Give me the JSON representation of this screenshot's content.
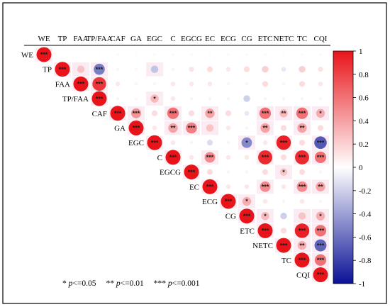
{
  "chart_data": {
    "type": "heatmap",
    "subtype": "correlation-circles-upper-triangle",
    "variables": [
      "WE",
      "TP",
      "FAA",
      "TP/FAA",
      "CAF",
      "GA",
      "EGC",
      "C",
      "EGCG",
      "EC",
      "ECG",
      "CG",
      "ETC",
      "NETC",
      "TC",
      "CQI"
    ],
    "cells": [
      {
        "row": "WE",
        "col": "WE",
        "r": 1.0,
        "sig": "***"
      },
      {
        "row": "WE",
        "col": "TP",
        "r": 0.02,
        "sig": ""
      },
      {
        "row": "WE",
        "col": "FAA",
        "r": 0.02,
        "sig": ""
      },
      {
        "row": "WE",
        "col": "TP/FAA",
        "r": 0.02,
        "sig": ""
      },
      {
        "row": "WE",
        "col": "CAF",
        "r": 0.03,
        "sig": ""
      },
      {
        "row": "WE",
        "col": "GA",
        "r": 0.03,
        "sig": ""
      },
      {
        "row": "WE",
        "col": "EGC",
        "r": 0.03,
        "sig": ""
      },
      {
        "row": "WE",
        "col": "C",
        "r": 0.03,
        "sig": ""
      },
      {
        "row": "WE",
        "col": "EGCG",
        "r": 0.03,
        "sig": ""
      },
      {
        "row": "WE",
        "col": "EC",
        "r": 0.03,
        "sig": ""
      },
      {
        "row": "WE",
        "col": "ECG",
        "r": 0.03,
        "sig": ""
      },
      {
        "row": "WE",
        "col": "CG",
        "r": 0.03,
        "sig": ""
      },
      {
        "row": "WE",
        "col": "ETC",
        "r": 0.03,
        "sig": ""
      },
      {
        "row": "WE",
        "col": "NETC",
        "r": 0.03,
        "sig": ""
      },
      {
        "row": "WE",
        "col": "TC",
        "r": 0.03,
        "sig": ""
      },
      {
        "row": "WE",
        "col": "CQI",
        "r": 0.03,
        "sig": ""
      },
      {
        "row": "TP",
        "col": "TP",
        "r": 1.0,
        "sig": "***"
      },
      {
        "row": "TP",
        "col": "FAA",
        "r": 0.25,
        "sig": ""
      },
      {
        "row": "TP",
        "col": "TP/FAA",
        "r": -0.55,
        "sig": "***"
      },
      {
        "row": "TP",
        "col": "CAF",
        "r": 0.05,
        "sig": ""
      },
      {
        "row": "TP",
        "col": "GA",
        "r": 0.04,
        "sig": ""
      },
      {
        "row": "TP",
        "col": "EGC",
        "r": -0.25,
        "sig": ""
      },
      {
        "row": "TP",
        "col": "C",
        "r": 0.05,
        "sig": ""
      },
      {
        "row": "TP",
        "col": "EGCG",
        "r": 0.12,
        "sig": ""
      },
      {
        "row": "TP",
        "col": "EC",
        "r": 0.15,
        "sig": ""
      },
      {
        "row": "TP",
        "col": "ECG",
        "r": 0.1,
        "sig": ""
      },
      {
        "row": "TP",
        "col": "CG",
        "r": 0.15,
        "sig": ""
      },
      {
        "row": "TP",
        "col": "ETC",
        "r": 0.2,
        "sig": ""
      },
      {
        "row": "TP",
        "col": "NETC",
        "r": -0.1,
        "sig": ""
      },
      {
        "row": "TP",
        "col": "TC",
        "r": 0.2,
        "sig": ""
      },
      {
        "row": "TP",
        "col": "CQI",
        "r": 0.12,
        "sig": ""
      },
      {
        "row": "FAA",
        "col": "FAA",
        "r": 1.0,
        "sig": "***"
      },
      {
        "row": "FAA",
        "col": "TP/FAA",
        "r": 0.85,
        "sig": "***"
      },
      {
        "row": "FAA",
        "col": "CAF",
        "r": 0.1,
        "sig": ""
      },
      {
        "row": "FAA",
        "col": "GA",
        "r": 0.05,
        "sig": ""
      },
      {
        "row": "FAA",
        "col": "EGC",
        "r": 0.05,
        "sig": ""
      },
      {
        "row": "FAA",
        "col": "C",
        "r": 0.1,
        "sig": ""
      },
      {
        "row": "FAA",
        "col": "EGCG",
        "r": 0.1,
        "sig": ""
      },
      {
        "row": "FAA",
        "col": "EC",
        "r": 0.1,
        "sig": ""
      },
      {
        "row": "FAA",
        "col": "ECG",
        "r": 0.05,
        "sig": ""
      },
      {
        "row": "FAA",
        "col": "CG",
        "r": 0.05,
        "sig": ""
      },
      {
        "row": "FAA",
        "col": "ETC",
        "r": 0.15,
        "sig": ""
      },
      {
        "row": "FAA",
        "col": "NETC",
        "r": 0.05,
        "sig": ""
      },
      {
        "row": "FAA",
        "col": "TC",
        "r": 0.15,
        "sig": ""
      },
      {
        "row": "FAA",
        "col": "CQI",
        "r": 0.1,
        "sig": ""
      },
      {
        "row": "TP/FAA",
        "col": "TP/FAA",
        "r": 1.0,
        "sig": "***"
      },
      {
        "row": "TP/FAA",
        "col": "CAF",
        "r": 0.05,
        "sig": ""
      },
      {
        "row": "TP/FAA",
        "col": "GA",
        "r": 0.04,
        "sig": ""
      },
      {
        "row": "TP/FAA",
        "col": "EGC",
        "r": 0.3,
        "sig": "*"
      },
      {
        "row": "TP/FAA",
        "col": "C",
        "r": 0.1,
        "sig": ""
      },
      {
        "row": "TP/FAA",
        "col": "EGCG",
        "r": 0.05,
        "sig": ""
      },
      {
        "row": "TP/FAA",
        "col": "EC",
        "r": 0.05,
        "sig": ""
      },
      {
        "row": "TP/FAA",
        "col": "ECG",
        "r": 0.05,
        "sig": ""
      },
      {
        "row": "TP/FAA",
        "col": "CG",
        "r": -0.2,
        "sig": ""
      },
      {
        "row": "TP/FAA",
        "col": "ETC",
        "r": 0.05,
        "sig": ""
      },
      {
        "row": "TP/FAA",
        "col": "NETC",
        "r": 0.05,
        "sig": ""
      },
      {
        "row": "TP/FAA",
        "col": "TC",
        "r": 0.05,
        "sig": ""
      },
      {
        "row": "TP/FAA",
        "col": "CQI",
        "r": 0.05,
        "sig": ""
      },
      {
        "row": "CAF",
        "col": "CAF",
        "r": 1.0,
        "sig": "***"
      },
      {
        "row": "CAF",
        "col": "GA",
        "r": 0.45,
        "sig": "***"
      },
      {
        "row": "CAF",
        "col": "EGC",
        "r": 0.15,
        "sig": ""
      },
      {
        "row": "CAF",
        "col": "C",
        "r": 0.6,
        "sig": "***"
      },
      {
        "row": "CAF",
        "col": "EGCG",
        "r": 0.15,
        "sig": ""
      },
      {
        "row": "CAF",
        "col": "EC",
        "r": 0.4,
        "sig": "**"
      },
      {
        "row": "CAF",
        "col": "ECG",
        "r": 0.15,
        "sig": ""
      },
      {
        "row": "CAF",
        "col": "CG",
        "r": -0.1,
        "sig": ""
      },
      {
        "row": "CAF",
        "col": "ETC",
        "r": 0.6,
        "sig": "***"
      },
      {
        "row": "CAF",
        "col": "NETC",
        "r": 0.3,
        "sig": "**"
      },
      {
        "row": "CAF",
        "col": "TC",
        "r": 0.6,
        "sig": "***"
      },
      {
        "row": "CAF",
        "col": "CQI",
        "r": 0.35,
        "sig": "*"
      },
      {
        "row": "GA",
        "col": "GA",
        "r": 1.0,
        "sig": "***"
      },
      {
        "row": "GA",
        "col": "EGC",
        "r": 0.1,
        "sig": ""
      },
      {
        "row": "GA",
        "col": "C",
        "r": 0.4,
        "sig": "**"
      },
      {
        "row": "GA",
        "col": "EGCG",
        "r": 0.55,
        "sig": "***"
      },
      {
        "row": "GA",
        "col": "EC",
        "r": 0.25,
        "sig": ""
      },
      {
        "row": "GA",
        "col": "ECG",
        "r": 0.1,
        "sig": ""
      },
      {
        "row": "GA",
        "col": "CG",
        "r": 0.05,
        "sig": ""
      },
      {
        "row": "GA",
        "col": "ETC",
        "r": 0.4,
        "sig": "**"
      },
      {
        "row": "GA",
        "col": "NETC",
        "r": 0.15,
        "sig": ""
      },
      {
        "row": "GA",
        "col": "TC",
        "r": 0.4,
        "sig": "**"
      },
      {
        "row": "GA",
        "col": "CQI",
        "r": 0.15,
        "sig": ""
      },
      {
        "row": "EGC",
        "col": "EGC",
        "r": 1.0,
        "sig": "***"
      },
      {
        "row": "EGC",
        "col": "C",
        "r": 0.1,
        "sig": ""
      },
      {
        "row": "EGC",
        "col": "EGCG",
        "r": 0.05,
        "sig": ""
      },
      {
        "row": "EGC",
        "col": "EC",
        "r": -0.15,
        "sig": ""
      },
      {
        "row": "EGC",
        "col": "ECG",
        "r": 0.05,
        "sig": ""
      },
      {
        "row": "EGC",
        "col": "CG",
        "r": -0.5,
        "sig": "*"
      },
      {
        "row": "EGC",
        "col": "ETC",
        "r": 0.1,
        "sig": ""
      },
      {
        "row": "EGC",
        "col": "NETC",
        "r": 0.95,
        "sig": "***"
      },
      {
        "row": "EGC",
        "col": "TC",
        "r": 0.15,
        "sig": ""
      },
      {
        "row": "EGC",
        "col": "CQI",
        "r": -0.7,
        "sig": "***"
      },
      {
        "row": "C",
        "col": "C",
        "r": 1.0,
        "sig": "***"
      },
      {
        "row": "C",
        "col": "EGCG",
        "r": 0.1,
        "sig": ""
      },
      {
        "row": "C",
        "col": "EC",
        "r": 0.5,
        "sig": "***"
      },
      {
        "row": "C",
        "col": "ECG",
        "r": 0.1,
        "sig": ""
      },
      {
        "row": "C",
        "col": "CG",
        "r": 0.1,
        "sig": ""
      },
      {
        "row": "C",
        "col": "ETC",
        "r": 0.9,
        "sig": "***"
      },
      {
        "row": "C",
        "col": "NETC",
        "r": 0.15,
        "sig": ""
      },
      {
        "row": "C",
        "col": "TC",
        "r": 0.9,
        "sig": "***"
      },
      {
        "row": "C",
        "col": "CQI",
        "r": 0.6,
        "sig": "***"
      },
      {
        "row": "EGCG",
        "col": "EGCG",
        "r": 1.0,
        "sig": "***"
      },
      {
        "row": "EGCG",
        "col": "EC",
        "r": 0.15,
        "sig": ""
      },
      {
        "row": "EGCG",
        "col": "ECG",
        "r": 0.05,
        "sig": ""
      },
      {
        "row": "EGCG",
        "col": "CG",
        "r": 0.05,
        "sig": ""
      },
      {
        "row": "EGCG",
        "col": "ETC",
        "r": 0.15,
        "sig": ""
      },
      {
        "row": "EGCG",
        "col": "NETC",
        "r": 0.25,
        "sig": "*"
      },
      {
        "row": "EGCG",
        "col": "TC",
        "r": 0.15,
        "sig": ""
      },
      {
        "row": "EGCG",
        "col": "CQI",
        "r": 0.05,
        "sig": ""
      },
      {
        "row": "EC",
        "col": "EC",
        "r": 1.0,
        "sig": "***"
      },
      {
        "row": "EC",
        "col": "ECG",
        "r": 0.1,
        "sig": ""
      },
      {
        "row": "EC",
        "col": "CG",
        "r": 0.1,
        "sig": ""
      },
      {
        "row": "EC",
        "col": "ETC",
        "r": 0.5,
        "sig": "***"
      },
      {
        "row": "EC",
        "col": "NETC",
        "r": 0.1,
        "sig": ""
      },
      {
        "row": "EC",
        "col": "TC",
        "r": 0.5,
        "sig": "***"
      },
      {
        "row": "EC",
        "col": "CQI",
        "r": 0.4,
        "sig": "**"
      },
      {
        "row": "ECG",
        "col": "ECG",
        "r": 1.0,
        "sig": "***"
      },
      {
        "row": "ECG",
        "col": "CG",
        "r": 0.35,
        "sig": "*"
      },
      {
        "row": "ECG",
        "col": "ETC",
        "r": 0.1,
        "sig": ""
      },
      {
        "row": "ECG",
        "col": "NETC",
        "r": 0.05,
        "sig": ""
      },
      {
        "row": "ECG",
        "col": "TC",
        "r": 0.1,
        "sig": ""
      },
      {
        "row": "ECG",
        "col": "CQI",
        "r": 0.05,
        "sig": ""
      },
      {
        "row": "CG",
        "col": "CG",
        "r": 1.0,
        "sig": "***"
      },
      {
        "row": "CG",
        "col": "ETC",
        "r": 0.3,
        "sig": "*"
      },
      {
        "row": "CG",
        "col": "NETC",
        "r": -0.2,
        "sig": ""
      },
      {
        "row": "CG",
        "col": "TC",
        "r": 0.25,
        "sig": ""
      },
      {
        "row": "CG",
        "col": "CQI",
        "r": 0.35,
        "sig": "*"
      },
      {
        "row": "ETC",
        "col": "ETC",
        "r": 1.0,
        "sig": "***"
      },
      {
        "row": "ETC",
        "col": "NETC",
        "r": 0.15,
        "sig": ""
      },
      {
        "row": "ETC",
        "col": "TC",
        "r": 0.95,
        "sig": "***"
      },
      {
        "row": "ETC",
        "col": "CQI",
        "r": 0.6,
        "sig": "***"
      },
      {
        "row": "NETC",
        "col": "NETC",
        "r": 1.0,
        "sig": "***"
      },
      {
        "row": "NETC",
        "col": "TC",
        "r": 0.35,
        "sig": "**"
      },
      {
        "row": "NETC",
        "col": "CQI",
        "r": -0.65,
        "sig": "***"
      },
      {
        "row": "TC",
        "col": "TC",
        "r": 1.0,
        "sig": "***"
      },
      {
        "row": "TC",
        "col": "CQI",
        "r": 0.6,
        "sig": "***"
      },
      {
        "row": "CQI",
        "col": "CQI",
        "r": 1.0,
        "sig": "***"
      }
    ],
    "colorbar": {
      "range": [
        -1,
        1
      ],
      "ticks": [
        "1",
        "0.8",
        "0.6",
        "0.4",
        "0.2",
        "0",
        "-0.2",
        "-0.4",
        "-0.6",
        "-0.8",
        "-1"
      ],
      "colors": {
        "positive": "#e8141a",
        "zero": "#ffffff",
        "negative": "#0a1296"
      }
    },
    "legend_note": {
      "one": "* ",
      "one_p": "p",
      "one_rest": "<=0.05",
      "two": "** ",
      "two_p": "p",
      "two_rest": "<=0.01",
      "three": "*** ",
      "three_p": "p",
      "three_rest": "<=0.001"
    }
  }
}
